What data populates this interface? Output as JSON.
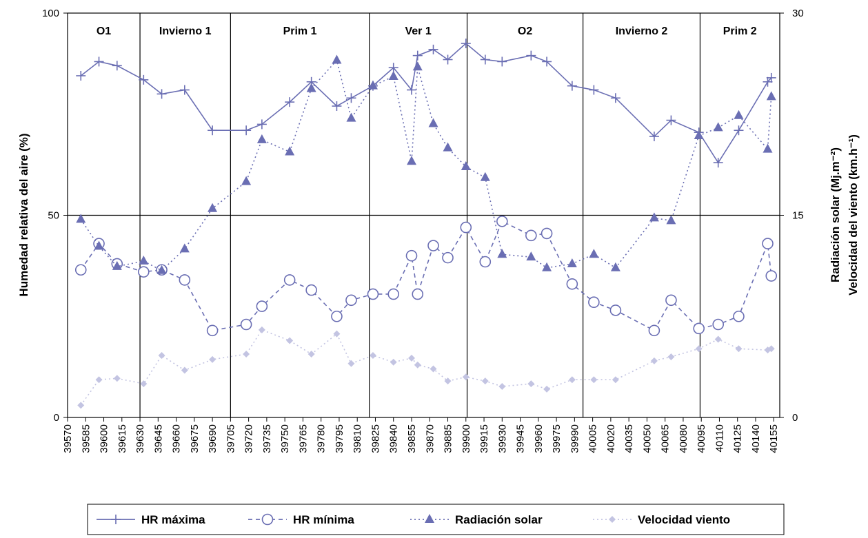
{
  "chart_data": {
    "type": "line",
    "title": "",
    "xlabel": "",
    "ylabel_left": "Humedad relativa del aire (%)",
    "ylabel_right_line1": "Radiación solar  (Mj.m⁻²)",
    "ylabel_right_line2": "Velocidad del viento (km.h⁻¹)",
    "xlim": [
      39570,
      40160
    ],
    "x_ticks": [
      39570,
      39585,
      39600,
      39615,
      39630,
      39645,
      39660,
      39675,
      39690,
      39705,
      39720,
      39735,
      39750,
      39765,
      39780,
      39795,
      39810,
      39825,
      39840,
      39855,
      39870,
      39885,
      39900,
      39915,
      39930,
      39945,
      39960,
      39975,
      39990,
      40005,
      40020,
      40035,
      40050,
      40065,
      40080,
      40095,
      40110,
      40125,
      40140,
      40155
    ],
    "y_left": {
      "min": 0,
      "max": 100,
      "ticks": [
        0,
        50,
        100
      ]
    },
    "y_right": {
      "min": 0,
      "max": 30,
      "ticks": [
        0,
        15,
        30
      ]
    },
    "grid": "horizontal at 50",
    "legend_position": "bottom",
    "periods": [
      {
        "label": "O1",
        "start": 39570,
        "end": 39630
      },
      {
        "label": "Invierno 1",
        "start": 39630,
        "end": 39705
      },
      {
        "label": "Prim 1",
        "start": 39705,
        "end": 39820
      },
      {
        "label": "Ver 1",
        "start": 39820,
        "end": 39901
      },
      {
        "label": "O2",
        "start": 39901,
        "end": 39997
      },
      {
        "label": "Invierno 2",
        "start": 39997,
        "end": 40094
      },
      {
        "label": "Prim 2",
        "start": 40094,
        "end": 40160
      }
    ],
    "series": [
      {
        "name": "HR máxima",
        "axis": "left",
        "color": "#6a6eb3",
        "dash": "",
        "marker": "plus",
        "x": [
          39581,
          39596,
          39611,
          39633,
          39648,
          39667,
          39690,
          39718,
          39731,
          39754,
          39772,
          39793,
          39805,
          39823,
          39840,
          39855,
          39860,
          39873,
          39885,
          39900,
          39916,
          39930,
          39954,
          39967,
          39988,
          40006,
          40024,
          40056,
          40070,
          40093,
          40109,
          40126,
          40150,
          40153
        ],
        "y": [
          84.5,
          88,
          87,
          83.5,
          80,
          81,
          71,
          71,
          72.5,
          78,
          83,
          77,
          79,
          82,
          86.5,
          81,
          89.5,
          91,
          88.5,
          92.5,
          88.5,
          88,
          89.5,
          88,
          82,
          81,
          79,
          69.5,
          73.5,
          70.5,
          63,
          71,
          83,
          84
        ]
      },
      {
        "name": "HR mínima",
        "axis": "left",
        "color": "#6a6eb3",
        "dash": "6,5",
        "marker": "circle",
        "x": [
          39581,
          39596,
          39611,
          39633,
          39648,
          39667,
          39690,
          39718,
          39731,
          39754,
          39772,
          39793,
          39805,
          39823,
          39840,
          39855,
          39860,
          39873,
          39885,
          39900,
          39916,
          39930,
          39954,
          39967,
          39988,
          40006,
          40024,
          40056,
          40070,
          40093,
          40109,
          40126,
          40150,
          40153
        ],
        "y": [
          36.5,
          43,
          38,
          36,
          36.5,
          34,
          21.5,
          23,
          27.5,
          34,
          31.5,
          25,
          29,
          30.5,
          30.5,
          40,
          30.5,
          42.5,
          39.5,
          47,
          38.5,
          48.5,
          45,
          45.5,
          33,
          28.5,
          26.5,
          21.5,
          29,
          22,
          23,
          25,
          43,
          35
        ]
      },
      {
        "name": "Radiación solar",
        "axis": "right",
        "color": "#6a6eb3",
        "dash": "2,4",
        "marker": "triangle",
        "x": [
          39581,
          39596,
          39611,
          39633,
          39648,
          39667,
          39690,
          39718,
          39731,
          39754,
          39772,
          39793,
          39805,
          39823,
          39840,
          39855,
          39860,
          39873,
          39885,
          39900,
          39916,
          39930,
          39954,
          39967,
          39988,
          40006,
          40024,
          40056,
          40070,
          40093,
          40109,
          40126,
          40150,
          40153
        ],
        "y": [
          14.7,
          12.7,
          11.2,
          11.6,
          10.9,
          12.5,
          15.5,
          17.5,
          20.6,
          19.7,
          24.4,
          26.5,
          22.2,
          24.6,
          25.3,
          19,
          26,
          21.8,
          20,
          18.6,
          17.8,
          12.1,
          11.9,
          11.1,
          11.4,
          12.1,
          11.1,
          14.8,
          14.6,
          20.9,
          21.5,
          22.4,
          19.9,
          23.8
        ]
      },
      {
        "name": "Velocidad viento",
        "axis": "right",
        "color": "#c3c4e2",
        "dash": "2,4",
        "marker": "diamond",
        "x": [
          39581,
          39596,
          39611,
          39633,
          39648,
          39667,
          39690,
          39718,
          39731,
          39754,
          39772,
          39793,
          39805,
          39823,
          39840,
          39855,
          39860,
          39873,
          39885,
          39900,
          39916,
          39930,
          39954,
          39967,
          39988,
          40006,
          40024,
          40056,
          40070,
          40093,
          40109,
          40126,
          40150,
          40153
        ],
        "y": [
          0.9,
          2.8,
          2.9,
          2.5,
          4.6,
          3.5,
          4.3,
          4.7,
          6.5,
          5.7,
          4.7,
          6.2,
          4,
          4.6,
          4.1,
          4.4,
          3.9,
          3.6,
          2.7,
          3,
          2.7,
          2.3,
          2.5,
          2.1,
          2.8,
          2.8,
          2.8,
          4.2,
          4.5,
          5.1,
          5.8,
          5.1,
          5,
          5.1
        ]
      }
    ]
  }
}
